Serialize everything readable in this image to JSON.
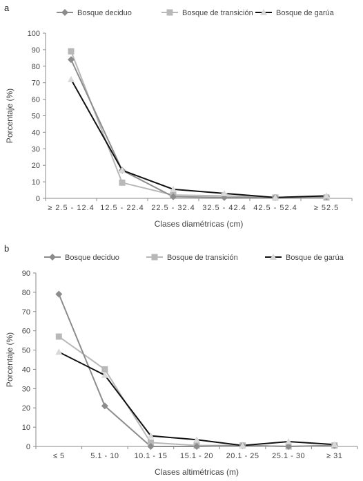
{
  "chart_data": [
    {
      "panel": "a",
      "type": "line",
      "categories": [
        "≥ 2.5 - 12.4",
        "12.5 - 22.4",
        "22.5 - 32.4",
        "32.5 - 42.4",
        "42.5 - 52.4",
        "≥ 52.5"
      ],
      "xlabel": "Clases diamétricas (cm)",
      "ylabel": "Porcentaje (%)",
      "ylim": [
        0,
        100
      ],
      "yticks": [
        0,
        10,
        20,
        30,
        40,
        50,
        60,
        70,
        80,
        90,
        100
      ],
      "grid": false,
      "legend": "top",
      "series": [
        {
          "name": "Bosque deciduo",
          "color": "#8c8c8c",
          "marker": "diamond",
          "values": [
            84,
            17,
            1,
            0.5,
            0.5,
            1
          ]
        },
        {
          "name": "Bosque de transición",
          "color": "#b8b8b8",
          "marker": "square",
          "values": [
            89,
            9.5,
            2,
            1.5,
            0.5,
            0.5
          ]
        },
        {
          "name": "Bosque de garúa",
          "color": "#111111",
          "marker": "triangle",
          "values": [
            72,
            17,
            5.5,
            3,
            0.5,
            1.5
          ]
        }
      ]
    },
    {
      "panel": "b",
      "type": "line",
      "categories": [
        "≤ 5",
        "5.1 - 10",
        "10.1 - 15",
        "15.1 - 20",
        "20.1 - 25",
        "25.1 - 30",
        "≥ 31"
      ],
      "xlabel": "Clases altimétricas (m)",
      "ylabel": "Porcentaje (%)",
      "ylim": [
        0,
        90
      ],
      "yticks": [
        0,
        10,
        20,
        30,
        40,
        50,
        60,
        70,
        80,
        90
      ],
      "grid": false,
      "legend": "top",
      "series": [
        {
          "name": "Bosque deciduo",
          "color": "#8c8c8c",
          "marker": "diamond",
          "values": [
            79,
            21,
            0,
            0,
            0.5,
            0,
            0.5
          ]
        },
        {
          "name": "Bosque de transición",
          "color": "#b8b8b8",
          "marker": "square",
          "values": [
            57,
            40,
            2,
            0.5,
            0.5,
            0,
            0.5
          ]
        },
        {
          "name": "Bosque de garúa",
          "color": "#111111",
          "marker": "triangle",
          "values": [
            49,
            37,
            5.5,
            3.5,
            0.5,
            2.5,
            1
          ]
        }
      ]
    }
  ]
}
